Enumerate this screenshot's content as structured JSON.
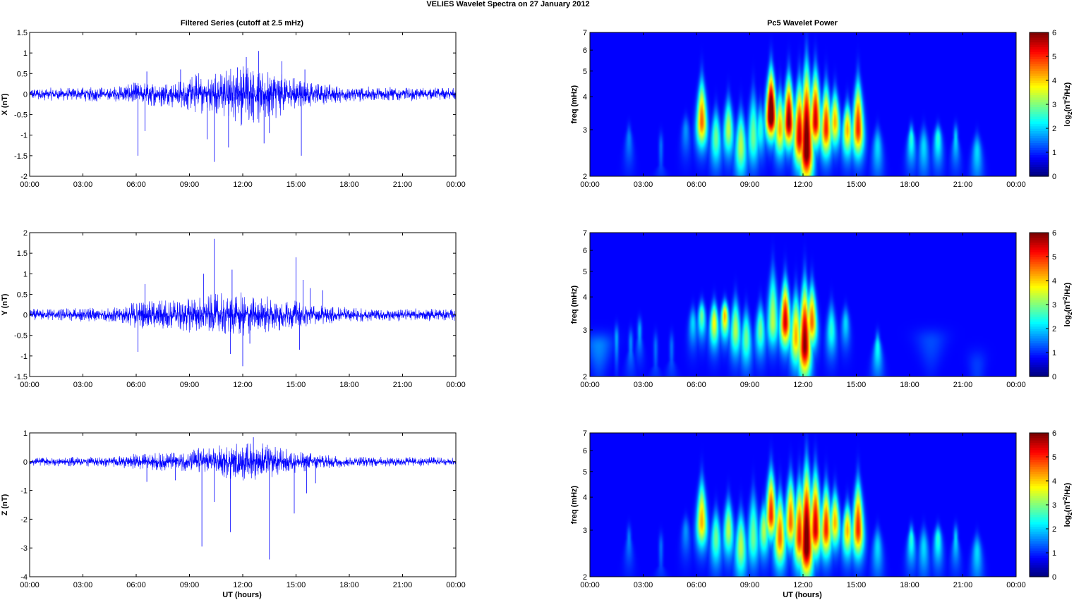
{
  "figure": {
    "title": "VELIES Wavelet Spectra on 27 January   2012",
    "left_title": "Filtered Series (cutoff at 2.5 mHz)",
    "right_title": "Pc5 Wavelet Power",
    "xlabel": "UT (hours)",
    "spec_ylabel": "freq (mHz)",
    "cbar_label": "log2(nT2/Hz)",
    "colormap": "jet",
    "line_color": "#0000ff",
    "axis_color": "#000000",
    "background_color": "#00008f"
  },
  "chart_data": [
    {
      "type": "line",
      "component": "X",
      "ylabel": "X (nT)",
      "xlim": [
        0,
        24
      ],
      "ylim": [
        -2,
        1.5
      ],
      "yticks": [
        -2,
        -1.5,
        -1,
        -0.5,
        0,
        0.5,
        1,
        1.5
      ],
      "ytick_labels": [
        "-2",
        "-1.5",
        "-1",
        "-0.5",
        "0",
        "0.5",
        "1",
        "1.5"
      ],
      "xtick_labels": [
        "00:00",
        "03:00",
        "06:00",
        "09:00",
        "12:00",
        "15:00",
        "18:00",
        "21:00",
        "00:00"
      ],
      "envelope": [
        [
          0,
          0.15
        ],
        [
          5,
          0.2
        ],
        [
          6,
          0.3
        ],
        [
          8.5,
          0.35
        ],
        [
          9.5,
          0.55
        ],
        [
          11,
          0.6
        ],
        [
          12,
          0.8
        ],
        [
          13,
          0.75
        ],
        [
          14.5,
          0.5
        ],
        [
          16,
          0.3
        ],
        [
          18,
          0.2
        ],
        [
          24,
          0.15
        ]
      ],
      "spikes": [
        [
          6.1,
          -1.5
        ],
        [
          6.5,
          -0.9
        ],
        [
          6.6,
          0.55
        ],
        [
          8.5,
          0.6
        ],
        [
          10.0,
          -1.1
        ],
        [
          10.4,
          -1.65
        ],
        [
          11.2,
          -1.3
        ],
        [
          11.7,
          0.65
        ],
        [
          12.2,
          0.9
        ],
        [
          12.9,
          1.05
        ],
        [
          13.2,
          -1.2
        ],
        [
          13.5,
          -0.95
        ],
        [
          14.2,
          0.8
        ],
        [
          15.3,
          -1.5
        ],
        [
          15.5,
          0.6
        ]
      ]
    },
    {
      "type": "line",
      "component": "Y",
      "ylabel": "Y (nT)",
      "xlim": [
        0,
        24
      ],
      "ylim": [
        -1.5,
        2
      ],
      "yticks": [
        -1.5,
        -1,
        -0.5,
        0,
        0.5,
        1,
        1.5,
        2
      ],
      "ytick_labels": [
        "-1.5",
        "-1",
        "-0.5",
        "0",
        "0.5",
        "1",
        "1.5",
        "2"
      ],
      "xtick_labels": [
        "00:00",
        "03:00",
        "06:00",
        "09:00",
        "12:00",
        "15:00",
        "18:00",
        "21:00",
        "00:00"
      ],
      "envelope": [
        [
          0,
          0.15
        ],
        [
          5,
          0.2
        ],
        [
          6,
          0.35
        ],
        [
          8,
          0.4
        ],
        [
          9.5,
          0.45
        ],
        [
          11,
          0.55
        ],
        [
          12,
          0.55
        ],
        [
          13,
          0.5
        ],
        [
          14.5,
          0.4
        ],
        [
          16,
          0.25
        ],
        [
          18,
          0.18
        ],
        [
          24,
          0.15
        ]
      ],
      "spikes": [
        [
          6.1,
          -0.9
        ],
        [
          6.5,
          0.75
        ],
        [
          9.8,
          1.0
        ],
        [
          10.4,
          1.85
        ],
        [
          11.4,
          1.1
        ],
        [
          11.3,
          -0.95
        ],
        [
          12.0,
          -1.25
        ],
        [
          12.4,
          -0.7
        ],
        [
          15.0,
          1.4
        ],
        [
          15.4,
          0.85
        ],
        [
          15.8,
          0.65
        ],
        [
          15.2,
          -0.85
        ],
        [
          16.5,
          0.6
        ]
      ]
    },
    {
      "type": "line",
      "component": "Z",
      "ylabel": "Z (nT)",
      "xlim": [
        0,
        24
      ],
      "ylim": [
        -4,
        1
      ],
      "yticks": [
        -4,
        -3,
        -2,
        -1,
        0,
        1
      ],
      "ytick_labels": [
        "-4",
        "-3",
        "-2",
        "-1",
        "0",
        "1"
      ],
      "xtick_labels": [
        "00:00",
        "03:00",
        "06:00",
        "09:00",
        "12:00",
        "15:00",
        "18:00",
        "21:00",
        "00:00"
      ],
      "envelope": [
        [
          0,
          0.15
        ],
        [
          5,
          0.2
        ],
        [
          6,
          0.3
        ],
        [
          8.5,
          0.35
        ],
        [
          9.5,
          0.5
        ],
        [
          11,
          0.6
        ],
        [
          12,
          0.7
        ],
        [
          13,
          0.7
        ],
        [
          14.5,
          0.45
        ],
        [
          16,
          0.3
        ],
        [
          18,
          0.2
        ],
        [
          24,
          0.15
        ]
      ],
      "spikes": [
        [
          9.7,
          -2.95
        ],
        [
          10.4,
          -1.4
        ],
        [
          11.3,
          -2.45
        ],
        [
          12.6,
          0.85
        ],
        [
          13.5,
          -3.4
        ],
        [
          14.9,
          -1.8
        ],
        [
          6.6,
          -0.7
        ],
        [
          8.2,
          -0.65
        ],
        [
          16.1,
          -0.75
        ],
        [
          15.6,
          -1.1
        ]
      ]
    },
    {
      "type": "heatmap",
      "component": "X",
      "ylabel": "freq (mHz)",
      "colorbar_label": "log2(nT2/Hz)",
      "xlim": [
        0,
        24
      ],
      "ylim": [
        2,
        7
      ],
      "y_scale": "log",
      "yticks": [
        2,
        3,
        4,
        5,
        6,
        7
      ],
      "ytick_labels": [
        "2",
        "3",
        "4",
        "5",
        "6",
        "7"
      ],
      "xtick_labels": [
        "00:00",
        "03:00",
        "06:00",
        "09:00",
        "12:00",
        "15:00",
        "18:00",
        "21:00",
        "00:00"
      ],
      "clim": [
        0,
        6
      ],
      "cbar_ticks": [
        "0",
        "1",
        "2",
        "3",
        "4",
        "5",
        "6"
      ],
      "blobs": [
        [
          2.2,
          2.8,
          3.0,
          0.9
        ],
        [
          4.0,
          2.6,
          2.2,
          0.8
        ],
        [
          5.4,
          3.0,
          3.5,
          1.0
        ],
        [
          6.3,
          3.2,
          5.0,
          4.5
        ],
        [
          7.1,
          2.8,
          3.8,
          2.5
        ],
        [
          7.8,
          3.0,
          4.2,
          3.0
        ],
        [
          8.5,
          2.6,
          3.8,
          3.0
        ],
        [
          9.2,
          2.8,
          4.5,
          2.5
        ],
        [
          9.6,
          3.0,
          4.0,
          2.0
        ],
        [
          10.2,
          3.4,
          5.5,
          7.0
        ],
        [
          10.7,
          3.0,
          4.5,
          4.0
        ],
        [
          11.2,
          3.2,
          5.2,
          6.0
        ],
        [
          11.8,
          2.8,
          5.0,
          5.5
        ],
        [
          12.2,
          2.5,
          5.9,
          6.5
        ],
        [
          12.7,
          3.2,
          5.5,
          5.5
        ],
        [
          13.3,
          3.0,
          4.8,
          5.0
        ],
        [
          13.8,
          3.2,
          4.5,
          4.0
        ],
        [
          14.5,
          3.0,
          4.0,
          4.0
        ],
        [
          15.1,
          3.0,
          5.0,
          5.0
        ],
        [
          16.2,
          2.6,
          3.2,
          1.5
        ],
        [
          18.1,
          2.8,
          3.0,
          2.0
        ],
        [
          18.8,
          2.6,
          3.2,
          1.5
        ],
        [
          19.6,
          2.8,
          3.2,
          2.0
        ],
        [
          20.6,
          2.8,
          2.8,
          1.5
        ],
        [
          21.8,
          2.5,
          3.0,
          1.5
        ]
      ]
    },
    {
      "type": "heatmap",
      "component": "Y",
      "ylabel": "freq (mHz)",
      "colorbar_label": "log2(nT2/Hz)",
      "xlim": [
        0,
        24
      ],
      "ylim": [
        2,
        7
      ],
      "y_scale": "log",
      "yticks": [
        2,
        3,
        4,
        5,
        6,
        7
      ],
      "ytick_labels": [
        "2",
        "3",
        "4",
        "5",
        "6",
        "7"
      ],
      "xtick_labels": [
        "00:00",
        "03:00",
        "06:00",
        "09:00",
        "12:00",
        "15:00",
        "18:00",
        "21:00",
        "00:00"
      ],
      "clim": [
        0,
        6
      ],
      "cbar_ticks": [
        "0",
        "1",
        "2",
        "3",
        "4",
        "5",
        "6"
      ],
      "blobs": [
        [
          0.5,
          2.6,
          1.5,
          0.9
        ],
        [
          1.5,
          2.8,
          2.0,
          1.2
        ],
        [
          2.3,
          2.7,
          2.5,
          1.0
        ],
        [
          2.8,
          3.0,
          2.8,
          1.2
        ],
        [
          3.7,
          2.6,
          2.2,
          0.8
        ],
        [
          4.6,
          2.6,
          2.3,
          0.8
        ],
        [
          5.8,
          3.2,
          3.8,
          1.5
        ],
        [
          6.3,
          3.4,
          4.0,
          2.5
        ],
        [
          7.0,
          3.2,
          4.0,
          3.5
        ],
        [
          7.6,
          3.4,
          4.0,
          4.0
        ],
        [
          8.2,
          3.0,
          4.2,
          3.0
        ],
        [
          8.8,
          2.8,
          3.8,
          2.5
        ],
        [
          9.6,
          3.0,
          4.0,
          2.5
        ],
        [
          10.3,
          3.2,
          5.5,
          3.0
        ],
        [
          11.0,
          3.2,
          5.0,
          5.5
        ],
        [
          11.6,
          2.8,
          4.5,
          4.0
        ],
        [
          12.1,
          2.6,
          5.0,
          6.0
        ],
        [
          12.5,
          3.2,
          4.8,
          4.5
        ],
        [
          13.6,
          3.0,
          4.0,
          2.0
        ],
        [
          14.4,
          3.2,
          3.8,
          1.5
        ],
        [
          16.2,
          2.6,
          2.8,
          1.8
        ],
        [
          19.2,
          2.7,
          1.5,
          0.5
        ],
        [
          21.8,
          2.2,
          1.2,
          0.4
        ]
      ]
    },
    {
      "type": "heatmap",
      "component": "Z",
      "ylabel": "freq (mHz)",
      "colorbar_label": "log2(nT2/Hz)",
      "xlim": [
        0,
        24
      ],
      "ylim": [
        2,
        7
      ],
      "y_scale": "log",
      "yticks": [
        2,
        3,
        4,
        5,
        6,
        7
      ],
      "ytick_labels": [
        "2",
        "3",
        "4",
        "5",
        "6",
        "7"
      ],
      "xtick_labels": [
        "00:00",
        "03:00",
        "06:00",
        "09:00",
        "12:00",
        "15:00",
        "18:00",
        "21:00",
        "00:00"
      ],
      "clim": [
        0,
        6
      ],
      "cbar_ticks": [
        "0",
        "1",
        "2",
        "3",
        "4",
        "5",
        "6"
      ],
      "blobs": [
        [
          2.2,
          2.8,
          2.8,
          0.9
        ],
        [
          4.0,
          2.6,
          2.2,
          0.8
        ],
        [
          5.4,
          3.0,
          3.5,
          1.0
        ],
        [
          6.3,
          3.2,
          5.0,
          4.0
        ],
        [
          7.1,
          2.8,
          3.8,
          2.5
        ],
        [
          7.8,
          3.0,
          4.2,
          3.0
        ],
        [
          8.5,
          2.6,
          3.8,
          3.0
        ],
        [
          9.2,
          2.8,
          4.5,
          2.5
        ],
        [
          9.8,
          3.0,
          4.0,
          3.0
        ],
        [
          10.2,
          3.4,
          5.5,
          5.0
        ],
        [
          10.7,
          2.8,
          4.5,
          4.5
        ],
        [
          11.3,
          3.2,
          5.2,
          4.5
        ],
        [
          11.8,
          2.8,
          5.0,
          5.0
        ],
        [
          12.2,
          2.6,
          5.9,
          6.5
        ],
        [
          12.7,
          3.0,
          5.5,
          5.5
        ],
        [
          13.3,
          3.0,
          4.8,
          5.0
        ],
        [
          13.8,
          3.2,
          4.5,
          4.0
        ],
        [
          14.5,
          3.0,
          4.0,
          4.0
        ],
        [
          15.1,
          3.0,
          5.0,
          5.0
        ],
        [
          16.2,
          2.6,
          3.2,
          1.5
        ],
        [
          18.1,
          2.8,
          3.0,
          2.0
        ],
        [
          18.8,
          2.6,
          3.2,
          1.5
        ],
        [
          19.6,
          2.8,
          3.2,
          2.0
        ],
        [
          20.6,
          2.8,
          2.8,
          1.5
        ],
        [
          21.8,
          2.5,
          3.0,
          1.5
        ]
      ]
    }
  ]
}
